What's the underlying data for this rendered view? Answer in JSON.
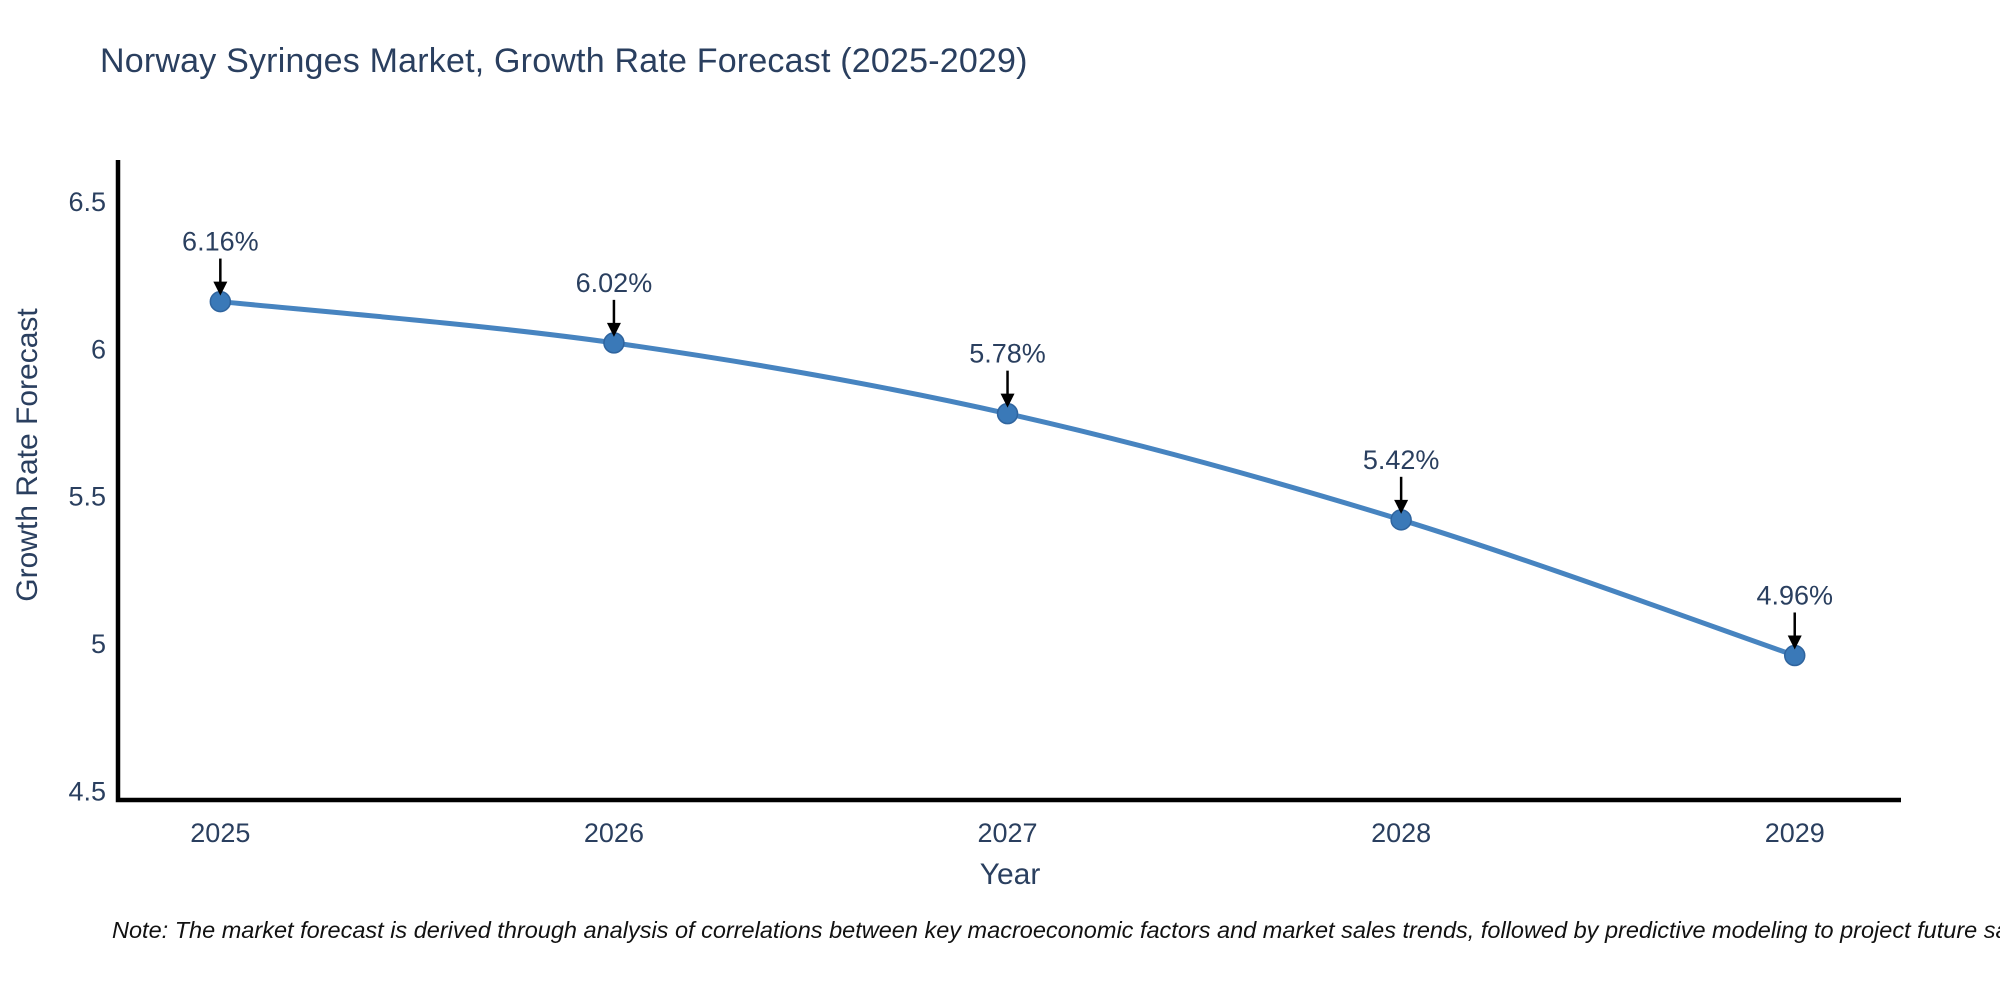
{
  "title": "Norway Syringes Market, Growth Rate Forecast (2025-2029)",
  "note": "Note: The market forecast is derived through analysis of correlations between key macroeconomic factors and market sales trends, followed by predictive modeling to project future sales",
  "chart_data": {
    "type": "line",
    "line_shape": "spline",
    "title": "Norway Syringes Market, Growth Rate Forecast (2025-2029)",
    "xlabel": "Year",
    "ylabel": "Growth Rate Forecast",
    "x": [
      2025,
      2026,
      2027,
      2028,
      2029
    ],
    "series": [
      {
        "name": "Growth Rate Forecast",
        "values": [
          6.16,
          6.02,
          5.78,
          5.42,
          4.96
        ]
      }
    ],
    "point_labels": [
      "6.16%",
      "6.02%",
      "5.78%",
      "5.42%",
      "4.96%"
    ],
    "x_tick_labels": [
      "2025",
      "2026",
      "2027",
      "2028",
      "2029"
    ],
    "y_ticks": [
      4.5,
      5,
      5.5,
      6,
      6.5
    ],
    "y_tick_labels": [
      "4.5",
      "5",
      "5.5",
      "6",
      "6.5"
    ],
    "ylim": [
      4.47,
      6.64
    ],
    "xlim": [
      2024.74,
      2029.27
    ],
    "grid": false,
    "legend": "none",
    "markers": true,
    "annotations_arrows": true,
    "colors": {
      "line": "#4784c0",
      "marker_fill": "#3a79b8",
      "marker_edge": "#2f649e",
      "axis": "#000000",
      "tick_text": "#2a3f5f",
      "annotation_text": "#2a3f5f",
      "arrow": "#000000",
      "title_text": "#2a3f5f",
      "background": "#ffffff"
    }
  }
}
